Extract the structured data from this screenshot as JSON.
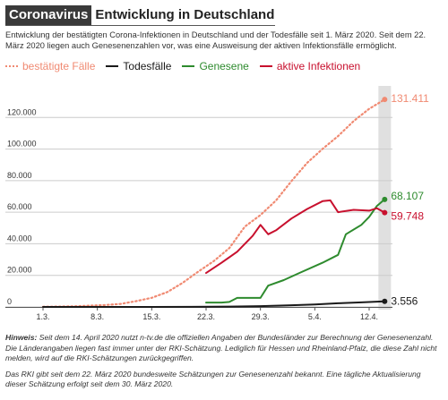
{
  "header": {
    "tag": "Coronavirus",
    "title": "Entwicklung in Deutschland",
    "subtitle": "Entwicklung der bestätigten Corona-Infektionen in Deutschland und der Todesfälle seit 1. März 2020. Seit dem 22. März 2020 liegen auch Genesenenzahlen vor, was eine Ausweisung der aktiven Infektionsfälle ermöglicht."
  },
  "colors": {
    "confirmed": "#f08a72",
    "deaths": "#1a1a1a",
    "recovered": "#2e8b2e",
    "active": "#c8102e",
    "highlight": "#e0e0e0",
    "grid": "#cccccc"
  },
  "chart_data": {
    "type": "line",
    "x_start": "2020-03-01",
    "x_end": "2020-04-15",
    "x_ticks": [
      "1.3.",
      "8.3.",
      "15.3.",
      "22.3.",
      "29.3.",
      "5.4.",
      "12.4."
    ],
    "ylim": [
      0,
      140000
    ],
    "y_ticks": [
      0,
      20000,
      40000,
      60000,
      80000,
      100000,
      120000
    ],
    "y_tick_labels": [
      "0",
      "20.000",
      "40.000",
      "60.000",
      "80.000",
      "100.000",
      "120.000"
    ],
    "grid": true,
    "legend_position": "top-left",
    "highlighted_date": "2020-04-14",
    "series": [
      {
        "name": "bestätigte Fälle",
        "key": "confirmed",
        "dash": true,
        "end_label": "131.411",
        "points": [
          [
            "2020-03-01",
            130
          ],
          [
            "2020-03-03",
            200
          ],
          [
            "2020-03-05",
            400
          ],
          [
            "2020-03-07",
            800
          ],
          [
            "2020-03-09",
            1200
          ],
          [
            "2020-03-11",
            1900
          ],
          [
            "2020-03-13",
            3700
          ],
          [
            "2020-03-15",
            5800
          ],
          [
            "2020-03-17",
            9400
          ],
          [
            "2020-03-19",
            15300
          ],
          [
            "2020-03-21",
            22400
          ],
          [
            "2020-03-23",
            29100
          ],
          [
            "2020-03-25",
            37300
          ],
          [
            "2020-03-27",
            50900
          ],
          [
            "2020-03-29",
            58200
          ],
          [
            "2020-03-31",
            67400
          ],
          [
            "2020-04-02",
            79700
          ],
          [
            "2020-04-04",
            91200
          ],
          [
            "2020-04-06",
            100100
          ],
          [
            "2020-04-08",
            108200
          ],
          [
            "2020-04-10",
            117700
          ],
          [
            "2020-04-12",
            125500
          ],
          [
            "2020-04-14",
            131411
          ]
        ]
      },
      {
        "name": "Todesfälle",
        "key": "deaths",
        "dash": false,
        "end_label": "3.556",
        "points": [
          [
            "2020-03-01",
            0
          ],
          [
            "2020-03-09",
            2
          ],
          [
            "2020-03-15",
            13
          ],
          [
            "2020-03-20",
            70
          ],
          [
            "2020-03-25",
            200
          ],
          [
            "2020-03-29",
            500
          ],
          [
            "2020-04-02",
            1100
          ],
          [
            "2020-04-05",
            1600
          ],
          [
            "2020-04-08",
            2300
          ],
          [
            "2020-04-11",
            2900
          ],
          [
            "2020-04-14",
            3556
          ]
        ]
      },
      {
        "name": "Genesene",
        "key": "recovered",
        "dash": false,
        "end_label": "68.107",
        "points": [
          [
            "2020-03-22",
            2800
          ],
          [
            "2020-03-24",
            2800
          ],
          [
            "2020-03-25",
            3200
          ],
          [
            "2020-03-26",
            5700
          ],
          [
            "2020-03-29",
            5700
          ],
          [
            "2020-03-30",
            13500
          ],
          [
            "2020-04-01",
            17000
          ],
          [
            "2020-04-03",
            21500
          ],
          [
            "2020-04-06",
            28000
          ],
          [
            "2020-04-08",
            33000
          ],
          [
            "2020-04-09",
            46000
          ],
          [
            "2020-04-11",
            52000
          ],
          [
            "2020-04-12",
            57000
          ],
          [
            "2020-04-13",
            64000
          ],
          [
            "2020-04-14",
            68107
          ]
        ]
      },
      {
        "name": "aktive Infektionen",
        "key": "active",
        "dash": false,
        "end_label": "59.748",
        "points": [
          [
            "2020-03-22",
            21500
          ],
          [
            "2020-03-24",
            28000
          ],
          [
            "2020-03-26",
            35000
          ],
          [
            "2020-03-28",
            45000
          ],
          [
            "2020-03-29",
            52000
          ],
          [
            "2020-03-30",
            46000
          ],
          [
            "2020-03-31",
            48500
          ],
          [
            "2020-04-02",
            56000
          ],
          [
            "2020-04-04",
            62000
          ],
          [
            "2020-04-06",
            67000
          ],
          [
            "2020-04-07",
            67500
          ],
          [
            "2020-04-08",
            60000
          ],
          [
            "2020-04-10",
            61500
          ],
          [
            "2020-04-12",
            61000
          ],
          [
            "2020-04-13",
            62500
          ],
          [
            "2020-04-14",
            59748
          ]
        ]
      }
    ]
  },
  "notes": {
    "hinweis_label": "Hinweis:",
    "hinweis_text": " Seit dem 14. April 2020 nutzt n-tv.de die offiziellen Angaben der Bundesländer zur Berechnung der Genesenenzahl. Die Länderangaben liegen fast immer unter der RKI-Schätzung. Lediglich für Hessen und Rheinland-Pfalz, die diese Zahl nicht melden, wird auf die RKI-Schätzungen zurückgegriffen.",
    "second": "Das RKI gibt seit dem 22. März 2020 bundesweite Schätzungen zur Genesenenzahl bekannt. Eine tägliche Aktualisierung dieser Schätzung erfolgt seit dem 30. März 2020."
  }
}
